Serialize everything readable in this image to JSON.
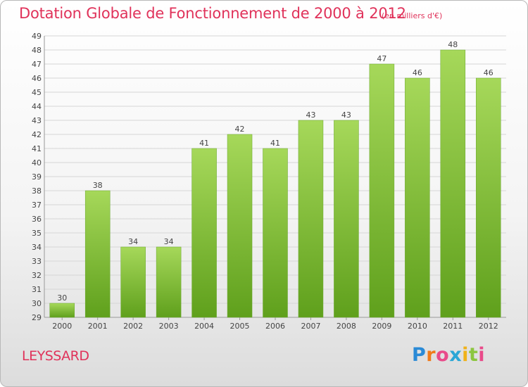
{
  "header": {
    "title": "Dotation Globale de Fonctionnement de 2000 à 2012",
    "unit": "(en milliers d'€)"
  },
  "footer": {
    "place": "LEYSSARD",
    "logo": "Proxiti",
    "logo_letter_colors": [
      "#2a8ad6",
      "#f07a1a",
      "#e94b8a",
      "#2aa6d6",
      "#f0b21a",
      "#8cc63f",
      "#e94b8a"
    ]
  },
  "chart_data": {
    "type": "bar",
    "categories": [
      "2000",
      "2001",
      "2002",
      "2003",
      "2004",
      "2005",
      "2006",
      "2007",
      "2008",
      "2009",
      "2010",
      "2011",
      "2012"
    ],
    "values": [
      30,
      38,
      34,
      34,
      41,
      42,
      41,
      43,
      43,
      47,
      46,
      48,
      46
    ],
    "title": "Dotation Globale de Fonctionnement de 2000 à 2012",
    "subtitle": "(en milliers d'€)",
    "ylim": [
      29,
      49
    ],
    "yticks": [
      29,
      30,
      31,
      32,
      33,
      34,
      35,
      36,
      37,
      38,
      39,
      40,
      41,
      42,
      43,
      44,
      45,
      46,
      47,
      48,
      49
    ],
    "grid": "horizontal",
    "bar_color": "#7cc13a"
  }
}
